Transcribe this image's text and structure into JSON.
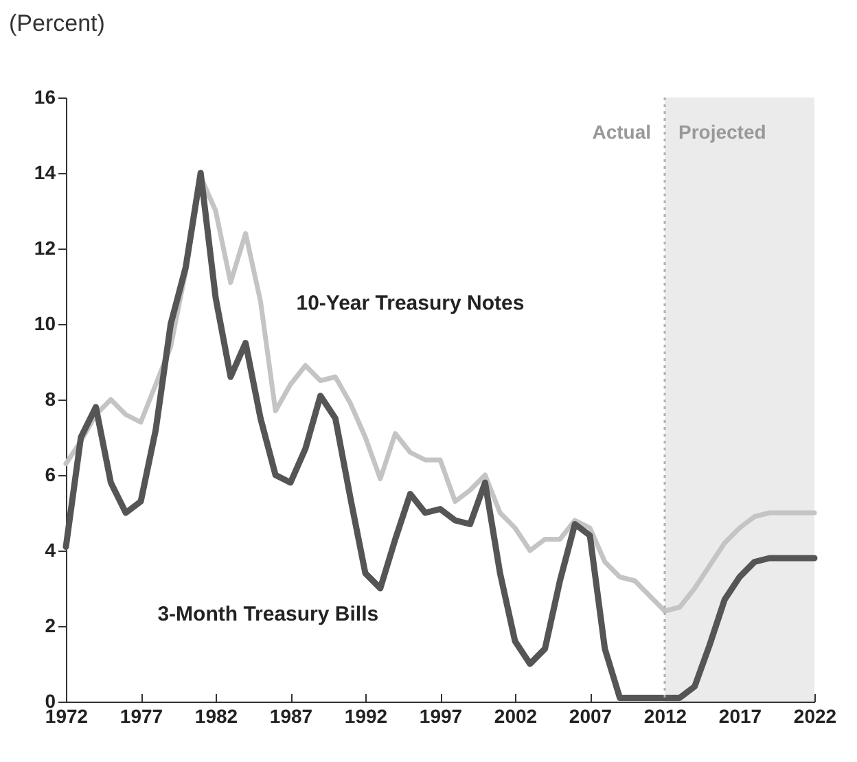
{
  "chart_data": {
    "type": "line",
    "ylabel": "(Percent)",
    "x": [
      1972,
      1973,
      1974,
      1975,
      1976,
      1977,
      1978,
      1979,
      1980,
      1981,
      1982,
      1983,
      1984,
      1985,
      1986,
      1987,
      1988,
      1989,
      1990,
      1991,
      1992,
      1993,
      1994,
      1995,
      1996,
      1997,
      1998,
      1999,
      2000,
      2001,
      2002,
      2003,
      2004,
      2005,
      2006,
      2007,
      2008,
      2009,
      2010,
      2011,
      2012,
      2013,
      2014,
      2015,
      2016,
      2017,
      2018,
      2019,
      2020,
      2021,
      2022
    ],
    "series": [
      {
        "name": "10-Year Treasury Notes",
        "color": "#c4c4c4",
        "values": [
          6.3,
          6.9,
          7.6,
          8.0,
          7.6,
          7.4,
          8.4,
          9.4,
          11.4,
          13.9,
          13.0,
          11.1,
          12.4,
          10.6,
          7.7,
          8.4,
          8.9,
          8.5,
          8.6,
          7.9,
          7.0,
          5.9,
          7.1,
          6.6,
          6.4,
          6.4,
          5.3,
          5.6,
          6.0,
          5.0,
          4.6,
          4.0,
          4.3,
          4.3,
          4.8,
          4.6,
          3.7,
          3.3,
          3.2,
          2.8,
          2.4,
          2.5,
          3.0,
          3.6,
          4.2,
          4.6,
          4.9,
          5.0,
          5.0,
          5.0,
          5.0
        ]
      },
      {
        "name": "3-Month Treasury Bills",
        "color": "#555555",
        "values": [
          4.1,
          7.0,
          7.8,
          5.8,
          5.0,
          5.3,
          7.2,
          10.0,
          11.5,
          14.0,
          10.7,
          8.6,
          9.5,
          7.5,
          6.0,
          5.8,
          6.7,
          8.1,
          7.5,
          5.4,
          3.4,
          3.0,
          4.3,
          5.5,
          5.0,
          5.1,
          4.8,
          4.7,
          5.8,
          3.4,
          1.6,
          1.0,
          1.4,
          3.2,
          4.7,
          4.4,
          1.4,
          0.1,
          0.1,
          0.1,
          0.1,
          0.1,
          0.4,
          1.5,
          2.7,
          3.3,
          3.7,
          3.8,
          3.8,
          3.8,
          3.8
        ]
      }
    ],
    "xlim": [
      1972,
      2022
    ],
    "xticks": [
      1972,
      1977,
      1982,
      1987,
      1992,
      1997,
      2002,
      2007,
      2012,
      2017,
      2022
    ],
    "ylim": [
      0,
      16
    ],
    "yticks": [
      0,
      2,
      4,
      6,
      8,
      10,
      12,
      14,
      16
    ],
    "ref_lines": [
      {
        "axis": "x",
        "value": 2012,
        "label": "Actual",
        "color": "#b0b0b0",
        "line_style": "dotted"
      }
    ],
    "bands": [
      {
        "axis": "x",
        "from": 2012,
        "to": 2022,
        "label": "Projected",
        "color": "#ebebeb"
      }
    ],
    "grid": false,
    "legend": false,
    "marker": "none",
    "line_style": "solid"
  }
}
